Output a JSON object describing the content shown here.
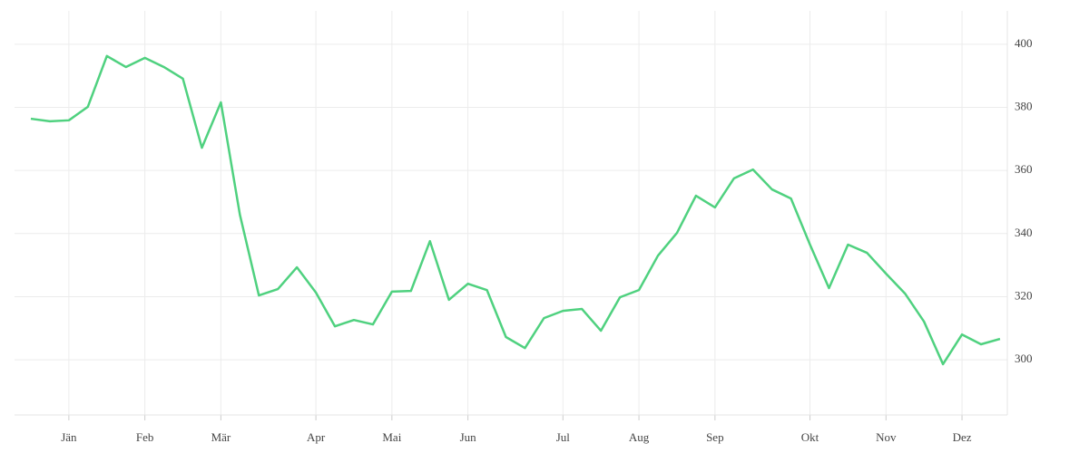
{
  "chart_data": {
    "type": "line",
    "categories": [
      null,
      null,
      "Jän",
      null,
      null,
      null,
      "Feb",
      null,
      null,
      null,
      "Mär",
      null,
      null,
      null,
      null,
      "Apr",
      null,
      null,
      null,
      "Mai",
      null,
      null,
      null,
      "Jun",
      null,
      null,
      null,
      null,
      "Jul",
      null,
      null,
      null,
      "Aug",
      null,
      null,
      null,
      "Sep",
      null,
      null,
      null,
      null,
      "Okt",
      null,
      null,
      null,
      "Nov",
      null,
      null,
      null,
      "Dez",
      null,
      null
    ],
    "series": [
      {
        "color": "#4fd17f",
        "values": [
          376.4,
          375.6,
          375.9,
          380.2,
          396.3,
          392.8,
          395.7,
          392.8,
          389.1,
          367.2,
          381.6,
          346.0,
          320.4,
          322.4,
          329.3,
          321.3,
          310.6,
          312.6,
          311.2,
          321.6,
          321.8,
          337.6,
          319.0,
          324.1,
          322.1,
          307.2,
          303.7,
          313.2,
          315.5,
          316.1,
          309.2,
          319.8,
          322.1,
          333.0,
          340.2,
          352.0,
          348.3,
          357.5,
          360.3,
          354.0,
          351.1,
          336.5,
          322.7,
          336.5,
          333.9,
          327.3,
          321.0,
          312.1,
          298.6,
          308.0,
          304.9,
          306.6
        ]
      }
    ],
    "ylim": [
      282.5,
      410.6
    ],
    "yticks": [
      300,
      320,
      340,
      360,
      380,
      400
    ],
    "grid": true
  }
}
